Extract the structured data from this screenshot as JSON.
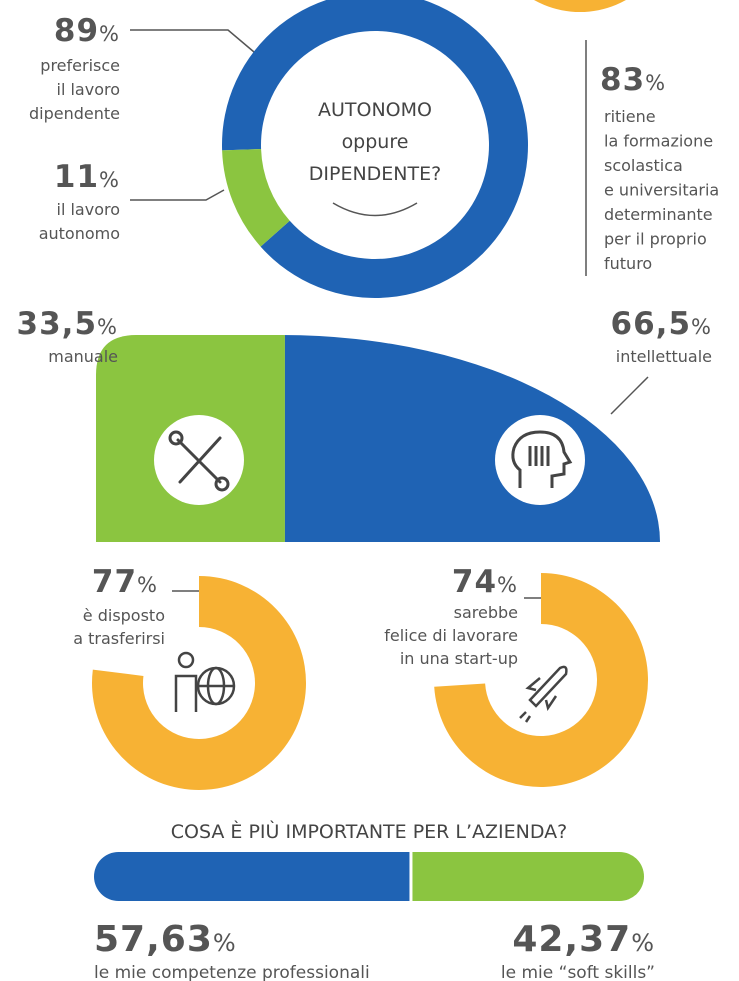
{
  "chart_data": [
    {
      "type": "donut",
      "title": "AUTONOMO\noppure\nDIPENDENTE?",
      "categories": [
        "preferisce\nil lavoro\ndipendente",
        "il lavoro\nautonomo"
      ],
      "values": [
        89,
        11
      ],
      "value_labels": [
        "89%",
        "11%"
      ],
      "colors": [
        "#1f63b4",
        "#8bc540"
      ]
    },
    {
      "type": "stat",
      "categories": [
        "ritiene\nla formazione\nscolastica\ne universitaria\ndeterminante\nper il proprio\nfuturo"
      ],
      "values": [
        83
      ],
      "value_labels": [
        "83%"
      ],
      "color": "#f7b234"
    },
    {
      "type": "halfdisc",
      "categories": [
        "manuale",
        "intellettuale"
      ],
      "values": [
        33.5,
        66.5
      ],
      "value_labels": [
        "33,5%",
        "66,5%"
      ],
      "colors": [
        "#8bc540",
        "#1f63b4"
      ]
    },
    {
      "type": "gauge",
      "categories": [
        "è disposto\na trasferirsi",
        "sarebbe\nfelice di lavorare\nin una start-up"
      ],
      "values": [
        77,
        74
      ],
      "value_labels": [
        "77%",
        "74%"
      ],
      "color": "#f7b234"
    },
    {
      "type": "stackedbar",
      "title": "COSA È PIÙ IMPORTANTE PER L’AZIENDA?",
      "categories": [
        "le mie competenze professionali",
        "le mie “soft skills”"
      ],
      "values": [
        57.63,
        42.37
      ],
      "value_labels": [
        "57,63%",
        "42,37%"
      ],
      "colors": [
        "#1f63b4",
        "#8bc540"
      ]
    }
  ]
}
